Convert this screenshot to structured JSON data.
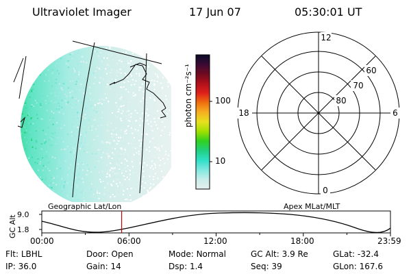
{
  "header": {
    "title": "Ultraviolet Imager",
    "date": "17 Jun 07",
    "time": "05:30:01 UT"
  },
  "colorbar": {
    "unit_label": "photon cm⁻²s⁻¹",
    "ticks": [
      "100",
      "10"
    ],
    "colors": [
      "#0a0a26",
      "#3a0a35",
      "#700a20",
      "#b0101a",
      "#e0201a",
      "#f07010",
      "#f5b020",
      "#e8e020",
      "#a0e000",
      "#30d020",
      "#20d080",
      "#30e0c8",
      "#80e8e0",
      "#c8eeea",
      "#e6f0ee"
    ]
  },
  "polar": {
    "mlt_labels": {
      "top": "12",
      "left": "18",
      "right": "6",
      "bottom": "0"
    },
    "lat_labels": [
      "60",
      "70",
      "80"
    ]
  },
  "panel_labels": {
    "geo": "Geographic Lat/Lon",
    "apex": "Apex MLat/MLT"
  },
  "timeline": {
    "y_label": "GC Alt",
    "y_ticks": [
      "9.0",
      "1.8"
    ],
    "x_ticks": [
      "00:00",
      "06:00",
      "12:00",
      "18:00",
      "23:59"
    ],
    "current_marker_hours": 5.5,
    "marker_color": "#cc0000"
  },
  "info": {
    "row1": [
      {
        "key": "Flt:",
        "val": "LBHL"
      },
      {
        "key": "Door:",
        "val": "Open"
      },
      {
        "key": "Mode:",
        "val": "Normal"
      },
      {
        "key": "GC Alt:",
        "val": "3.9 Re"
      },
      {
        "key": "GLat:",
        "val": "-32.4"
      }
    ],
    "row2": [
      {
        "key": "IP:",
        "val": "36.0"
      },
      {
        "key": "Gain:",
        "val": "14"
      },
      {
        "key": "Dsp:",
        "val": "1.4"
      },
      {
        "key": "Seq:",
        "val": "39"
      },
      {
        "key": "GLon:",
        "val": "167.6"
      }
    ]
  }
}
